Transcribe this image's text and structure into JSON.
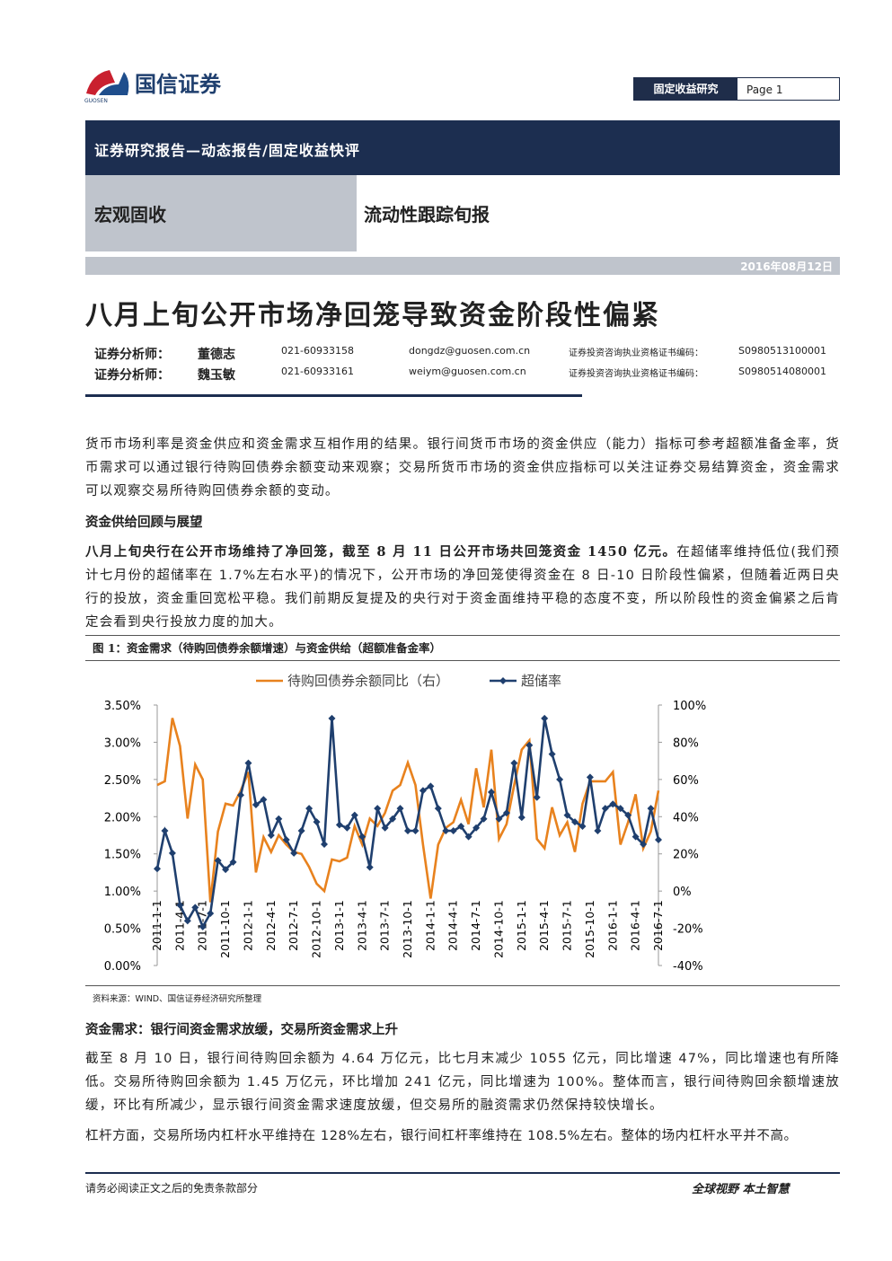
{
  "header": {
    "brand": "国信证券",
    "brand_en": "GUOSEN",
    "section": "固定收益研究",
    "page": "Page 1"
  },
  "banner": "证券研究报告—动态报告/固定收益快评",
  "category": "宏观固收",
  "report_series": "流动性跟踪旬报",
  "date": "2016年08月12日",
  "title": "八月上旬公开市场净回笼导致资金阶段性偏紧",
  "analysts": [
    {
      "role": "证券分析师：",
      "name": "董德志",
      "phone": "021-60933158",
      "email": "dongdz@guosen.com.cn",
      "cert_label": "证券投资咨询执业资格证书编码：",
      "cert": "S0980513100001"
    },
    {
      "role": "证券分析师：",
      "name": "魏玉敏",
      "phone": "021-60933161",
      "email": "weiym@guosen.com.cn",
      "cert_label": "证券投资咨询执业资格证书编码：",
      "cert": "S0980514080001"
    }
  ],
  "paragraph_1": "货币市场利率是资金供应和资金需求互相作用的结果。银行间货币市场的资金供应（能力）指标可参考超额准备金率，货币需求可以通过银行待购回债券余额变动来观察；交易所货币市场的资金供应指标可以关注证券交易结算资金，资金需求可以观察交易所待购回债券余额的变动。",
  "heading_1": "资金供给回顾与展望",
  "paragraph_2": {
    "bold": "八月上旬央行在公开市场维持了净回笼，截至 8 月 11 日公开市场共回笼资金 1450 亿元。",
    "text": "在超储率维持低位(我们预计七月份的超储率在 1.7%左右水平)的情况下，公开市场的净回笼使得资金在 8 日-10 日阶段性偏紧，但随着近两日央行的投放，资金重回宽松平稳。我们前期反复提及的央行对于资金面维持平稳的态度不变，所以阶段性的资金偏紧之后肯定会看到央行投放力度的加大。"
  },
  "figure": {
    "caption": "图 1：资金需求（待购回债券余额增速）与资金供给（超额准备金率）",
    "source": "资料来源：WIND、国信证券经济研究所整理"
  },
  "chart_data": {
    "type": "line",
    "categories": [
      "2011-1-1",
      null,
      null,
      "2011-4-1",
      null,
      null,
      "2011-7-1",
      null,
      null,
      "2011-10-1",
      null,
      null,
      "2012-1-1",
      null,
      null,
      "2012-4-1",
      null,
      null,
      "2012-7-1",
      null,
      null,
      "2012-10-1",
      null,
      null,
      "2013-1-1",
      null,
      null,
      "2013-4-1",
      null,
      null,
      "2013-7-1",
      null,
      null,
      "2013-10-1",
      null,
      null,
      "2014-1-1",
      null,
      null,
      "2014-4-1",
      null,
      null,
      "2014-7-1",
      null,
      null,
      "2014-10-1",
      null,
      null,
      "2015-1-1",
      null,
      null,
      "2015-4-1",
      null,
      null,
      "2015-7-1",
      null,
      null,
      "2015-10-1",
      null,
      null,
      "2016-1-1",
      null,
      null,
      "2016-4-1",
      null,
      null,
      "2016-7-1"
    ],
    "series": [
      {
        "name": "待购回债券余额同比（右）",
        "color": "#e8821e",
        "axis": "y2",
        "values": [
          57,
          59,
          93,
          78,
          39,
          68,
          60,
          -6,
          32,
          47,
          46,
          54,
          64,
          10,
          29,
          21,
          30,
          25,
          21,
          20,
          13,
          4,
          0,
          17,
          16,
          18,
          35,
          25,
          39,
          35,
          42,
          54,
          57,
          69,
          57,
          25,
          -4,
          25,
          34,
          37,
          49,
          36,
          66,
          45,
          76,
          28,
          36,
          57,
          76,
          81,
          28,
          23,
          45,
          30,
          37,
          21,
          47,
          59,
          59,
          59,
          64,
          25,
          37,
          52,
          23,
          32,
          54
        ]
      },
      {
        "name": "超储率",
        "color": "#1f3f6e",
        "values": [
          1.3,
          1.81,
          1.51,
          0.81,
          0.6,
          0.78,
          0.52,
          0.7,
          1.41,
          1.29,
          1.39,
          2.29,
          2.72,
          2.16,
          2.23,
          1.75,
          1.97,
          1.69,
          1.51,
          1.81,
          2.11,
          1.93,
          1.63,
          3.32,
          1.89,
          1.85,
          2.02,
          1.73,
          1.32,
          2.11,
          1.85,
          1.97,
          2.11,
          1.81,
          1.81,
          2.35,
          2.41,
          2.11,
          1.81,
          1.81,
          1.87,
          1.73,
          1.85,
          1.97,
          2.33,
          1.97,
          2.05,
          2.72,
          1.99,
          2.96,
          2.26,
          3.32,
          2.84,
          2.5,
          2.02,
          1.93,
          1.87,
          2.53,
          1.81,
          2.11,
          2.17,
          2.11,
          2.02,
          1.73,
          1.63,
          2.11,
          1.69
        ]
      }
    ],
    "ylim": [
      0,
      3.5
    ],
    "yticks": [
      {
        "value": 0,
        "label": "0.00%"
      },
      {
        "value": 0.5,
        "label": "0.50%"
      },
      {
        "value": 1,
        "label": "1.00%"
      },
      {
        "value": 1.5,
        "label": "1.50%"
      },
      {
        "value": 2,
        "label": "2.00%"
      },
      {
        "value": 2.5,
        "label": "2.50%"
      },
      {
        "value": 3,
        "label": "3.00%"
      },
      {
        "value": 3.5,
        "label": "3.50%"
      }
    ],
    "y2lim": [
      -40,
      100
    ],
    "y2ticks": [
      {
        "value": -40,
        "label": "-40%"
      },
      {
        "value": -20,
        "label": "-20%"
      },
      {
        "value": 0,
        "label": "0%"
      },
      {
        "value": 20,
        "label": "20%"
      },
      {
        "value": 40,
        "label": "40%"
      },
      {
        "value": 60,
        "label": "60%"
      },
      {
        "value": 80,
        "label": "80%"
      },
      {
        "value": 100,
        "label": "100%"
      }
    ],
    "legend": "top"
  },
  "heading_2": "资金需求：银行间资金需求放缓，交易所资金需求上升",
  "paragraph_3": "截至 8 月 10 日，银行间待购回余额为 4.64 万亿元，比七月末减少 1055 亿元，同比增速 47%，同比增速也有所降低。交易所待购回余额为 1.45 万亿元，环比增加 241 亿元，同比增速为 100%。整体而言，银行间待购回余额增速放缓，环比有所减少，显示银行间资金需求速度放缓，但交易所的融资需求仍然保持较快增长。",
  "paragraph_4": "杠杆方面，交易所场内杠杆水平维持在 128%左右，银行间杠杆率维持在 108.5%左右。整体的场内杠杆水平并不高。",
  "footer": {
    "disclaimer": "请务必阅读正文之后的免责条款部分",
    "slogan": "全球视野 本土智慧"
  }
}
